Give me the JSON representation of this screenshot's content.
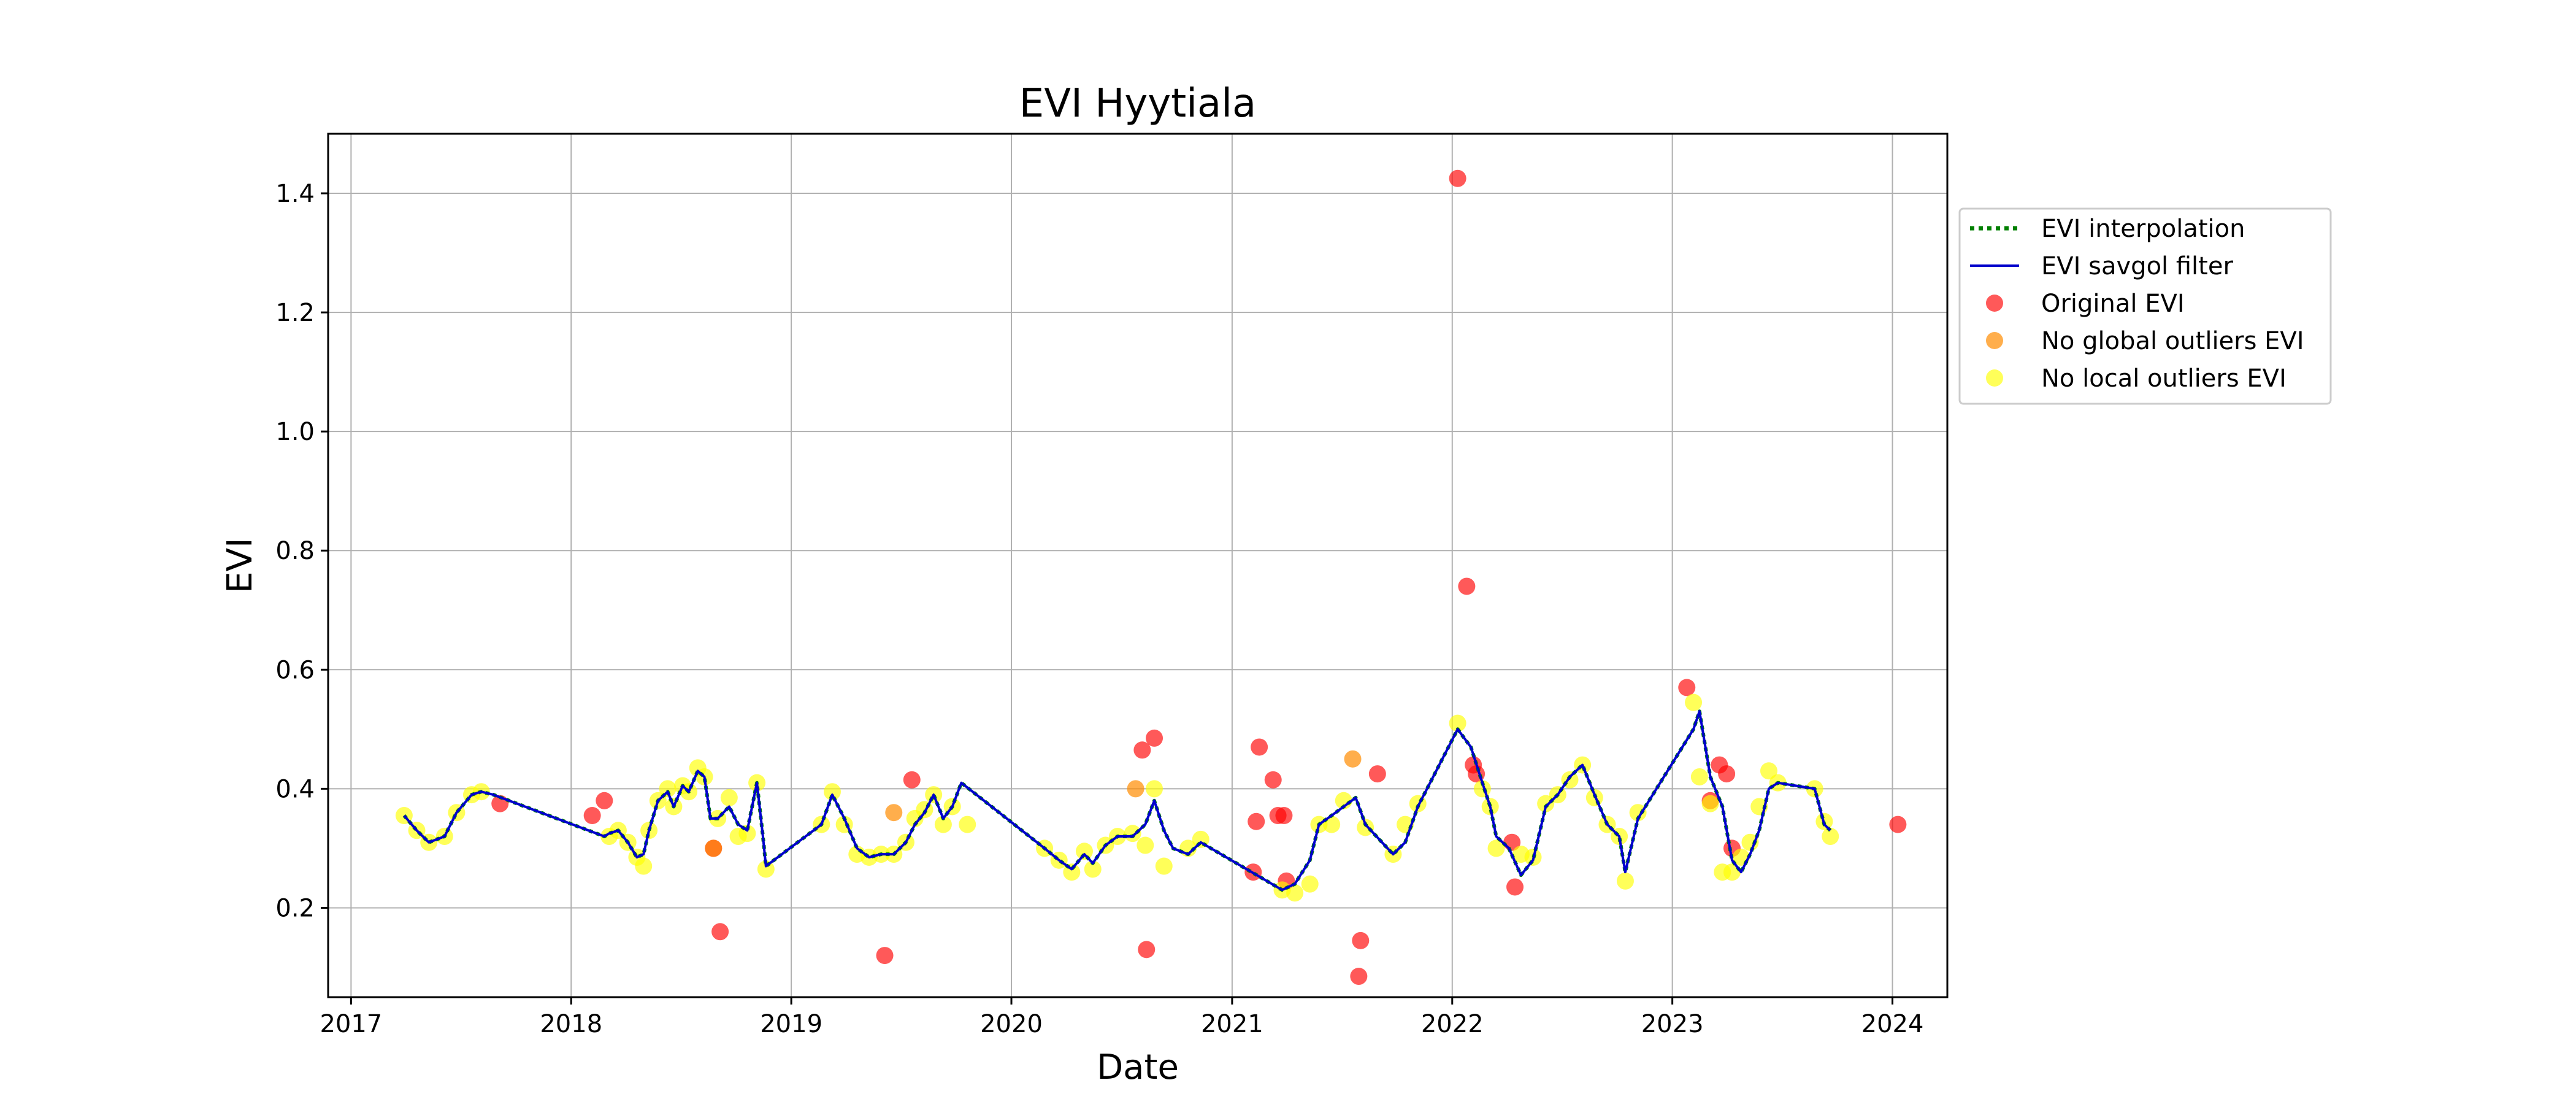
{
  "chart_data": {
    "type": "scatter",
    "title": "EVI Hyytiala",
    "xlabel": "Date",
    "ylabel": "EVI",
    "xlim": [
      "2016-11-24",
      "2024-04-01"
    ],
    "ylim": [
      0.05,
      1.5
    ],
    "x_ticks": [
      "2017",
      "2018",
      "2019",
      "2020",
      "2021",
      "2022",
      "2023",
      "2024"
    ],
    "y_ticks": [
      "0.2",
      "0.4",
      "0.6",
      "0.8",
      "1.0",
      "1.2",
      "1.4"
    ],
    "grid": true,
    "legend_position": "outside-right",
    "colors": {
      "interpolation": "#008000",
      "savgol": "#0000cc",
      "original": "#ff0000",
      "no_global": "#ff8c00",
      "no_local": "#ffff00"
    },
    "series": [
      {
        "name": "EVI interpolation",
        "style": "dotted-line",
        "x": [
          "2017-03-30",
          "2017-04-20",
          "2017-05-10",
          "2017-06-05",
          "2017-06-25",
          "2017-07-20",
          "2017-08-05",
          "2017-08-25",
          "2018-02-25",
          "2018-03-05",
          "2018-03-20",
          "2018-04-05",
          "2018-04-20",
          "2018-05-01",
          "2018-05-10",
          "2018-05-25",
          "2018-06-10",
          "2018-06-20",
          "2018-07-05",
          "2018-07-15",
          "2018-07-30",
          "2018-08-10",
          "2018-08-20",
          "2018-09-01",
          "2018-09-20",
          "2018-10-05",
          "2018-10-20",
          "2018-11-05",
          "2018-11-15",
          "2018-11-20",
          "2019-02-20",
          "2019-03-10",
          "2019-03-30",
          "2019-04-20",
          "2019-05-10",
          "2019-05-30",
          "2019-06-20",
          "2019-07-10",
          "2019-07-25",
          "2019-08-10",
          "2019-08-25",
          "2019-09-10",
          "2019-09-25",
          "2019-10-10",
          "2020-02-25",
          "2020-03-20",
          "2020-04-10",
          "2020-05-01",
          "2020-05-15",
          "2020-06-05",
          "2020-06-25",
          "2020-07-20",
          "2020-08-10",
          "2020-08-25",
          "2020-09-10",
          "2020-09-25",
          "2020-10-20",
          "2020-11-10",
          "2021-03-25",
          "2021-04-15",
          "2021-05-10",
          "2021-05-25",
          "2021-06-15",
          "2021-07-05",
          "2021-07-25",
          "2021-08-10",
          "2021-09-25",
          "2021-10-15",
          "2021-11-05",
          "2022-01-10",
          "2022-02-01",
          "2022-02-20",
          "2022-03-05",
          "2022-03-15",
          "2022-04-05",
          "2022-04-25",
          "2022-05-15",
          "2022-06-05",
          "2022-06-25",
          "2022-07-15",
          "2022-08-05",
          "2022-08-25",
          "2022-09-15",
          "2022-10-05",
          "2022-10-15",
          "2022-11-05",
          "2023-02-05",
          "2023-02-15",
          "2023-03-05",
          "2023-03-25",
          "2023-04-10",
          "2023-04-25",
          "2023-05-10",
          "2023-05-25",
          "2023-06-10",
          "2023-06-25",
          "2023-08-25",
          "2023-09-10",
          "2023-09-20"
        ],
        "y": [
          0.355,
          0.33,
          0.31,
          0.32,
          0.36,
          0.39,
          0.395,
          0.39,
          0.32,
          0.325,
          0.33,
          0.31,
          0.285,
          0.29,
          0.33,
          0.38,
          0.395,
          0.37,
          0.405,
          0.395,
          0.43,
          0.42,
          0.35,
          0.35,
          0.37,
          0.34,
          0.33,
          0.41,
          0.32,
          0.27,
          0.34,
          0.39,
          0.35,
          0.3,
          0.285,
          0.29,
          0.29,
          0.31,
          0.34,
          0.36,
          0.39,
          0.35,
          0.37,
          0.41,
          0.3,
          0.28,
          0.265,
          0.29,
          0.275,
          0.305,
          0.32,
          0.32,
          0.34,
          0.38,
          0.33,
          0.3,
          0.29,
          0.31,
          0.23,
          0.24,
          0.28,
          0.34,
          0.355,
          0.37,
          0.385,
          0.34,
          0.29,
          0.31,
          0.37,
          0.5,
          0.47,
          0.41,
          0.37,
          0.32,
          0.3,
          0.255,
          0.28,
          0.37,
          0.39,
          0.42,
          0.44,
          0.39,
          0.34,
          0.32,
          0.26,
          0.35,
          0.5,
          0.53,
          0.42,
          0.37,
          0.28,
          0.26,
          0.29,
          0.33,
          0.4,
          0.41,
          0.4,
          0.34,
          0.33
        ]
      },
      {
        "name": "EVI savgol filter",
        "style": "solid-line",
        "x": [
          "2017-03-30",
          "2017-04-20",
          "2017-05-10",
          "2017-06-05",
          "2017-06-25",
          "2017-07-20",
          "2017-08-05",
          "2017-08-25",
          "2018-02-25",
          "2018-03-05",
          "2018-03-20",
          "2018-04-05",
          "2018-04-20",
          "2018-05-01",
          "2018-05-10",
          "2018-05-25",
          "2018-06-10",
          "2018-06-20",
          "2018-07-05",
          "2018-07-15",
          "2018-07-30",
          "2018-08-10",
          "2018-08-20",
          "2018-09-01",
          "2018-09-20",
          "2018-10-05",
          "2018-10-20",
          "2018-11-05",
          "2018-11-15",
          "2018-11-20",
          "2019-02-20",
          "2019-03-10",
          "2019-03-30",
          "2019-04-20",
          "2019-05-10",
          "2019-05-30",
          "2019-06-20",
          "2019-07-10",
          "2019-07-25",
          "2019-08-10",
          "2019-08-25",
          "2019-09-10",
          "2019-09-25",
          "2019-10-10",
          "2020-02-25",
          "2020-03-20",
          "2020-04-10",
          "2020-05-01",
          "2020-05-15",
          "2020-06-05",
          "2020-06-25",
          "2020-07-20",
          "2020-08-10",
          "2020-08-25",
          "2020-09-10",
          "2020-09-25",
          "2020-10-20",
          "2020-11-10",
          "2021-03-25",
          "2021-04-15",
          "2021-05-10",
          "2021-05-25",
          "2021-06-15",
          "2021-07-05",
          "2021-07-25",
          "2021-08-10",
          "2021-09-25",
          "2021-10-15",
          "2021-11-05",
          "2022-01-10",
          "2022-02-01",
          "2022-02-20",
          "2022-03-05",
          "2022-03-15",
          "2022-04-05",
          "2022-04-25",
          "2022-05-15",
          "2022-06-05",
          "2022-06-25",
          "2022-07-15",
          "2022-08-05",
          "2022-08-25",
          "2022-09-15",
          "2022-10-05",
          "2022-10-15",
          "2022-11-05",
          "2023-02-05",
          "2023-02-15",
          "2023-03-05",
          "2023-03-25",
          "2023-04-10",
          "2023-04-25",
          "2023-05-10",
          "2023-05-25",
          "2023-06-10",
          "2023-06-25",
          "2023-08-25",
          "2023-09-10",
          "2023-09-20"
        ],
        "y": [
          0.355,
          0.33,
          0.31,
          0.32,
          0.36,
          0.39,
          0.395,
          0.39,
          0.32,
          0.325,
          0.33,
          0.31,
          0.285,
          0.29,
          0.33,
          0.38,
          0.395,
          0.37,
          0.405,
          0.395,
          0.43,
          0.42,
          0.35,
          0.35,
          0.37,
          0.34,
          0.33,
          0.41,
          0.32,
          0.27,
          0.34,
          0.39,
          0.35,
          0.3,
          0.285,
          0.29,
          0.29,
          0.31,
          0.34,
          0.36,
          0.39,
          0.35,
          0.37,
          0.41,
          0.3,
          0.28,
          0.265,
          0.29,
          0.275,
          0.305,
          0.32,
          0.32,
          0.34,
          0.38,
          0.33,
          0.3,
          0.29,
          0.31,
          0.23,
          0.24,
          0.28,
          0.34,
          0.355,
          0.37,
          0.385,
          0.34,
          0.29,
          0.31,
          0.37,
          0.5,
          0.47,
          0.41,
          0.37,
          0.32,
          0.3,
          0.255,
          0.28,
          0.37,
          0.39,
          0.42,
          0.44,
          0.39,
          0.34,
          0.32,
          0.26,
          0.35,
          0.5,
          0.53,
          0.42,
          0.37,
          0.28,
          0.26,
          0.29,
          0.33,
          0.4,
          0.41,
          0.4,
          0.34,
          0.33
        ]
      },
      {
        "name": "Original EVI",
        "style": "points",
        "x": [
          "2017-09-05",
          "2018-02-05",
          "2018-02-25",
          "2018-08-25",
          "2018-09-05",
          "2019-06-05",
          "2019-07-20",
          "2020-08-05",
          "2020-08-12",
          "2020-08-25",
          "2021-02-05",
          "2021-02-10",
          "2021-02-15",
          "2021-03-10",
          "2021-03-18",
          "2021-03-28",
          "2021-04-01",
          "2021-07-30",
          "2021-08-02",
          "2021-08-30",
          "2022-01-10",
          "2022-01-25",
          "2022-02-05",
          "2022-02-10",
          "2022-04-10",
          "2022-04-15",
          "2023-01-25",
          "2023-03-05",
          "2023-03-20",
          "2023-04-01",
          "2023-04-10",
          "2024-01-10"
        ],
        "y": [
          0.375,
          0.355,
          0.38,
          0.3,
          0.16,
          0.12,
          0.415,
          0.465,
          0.13,
          0.485,
          0.26,
          0.345,
          0.47,
          0.415,
          0.355,
          0.355,
          0.245,
          0.085,
          0.145,
          0.425,
          1.425,
          0.74,
          0.44,
          0.425,
          0.31,
          0.235,
          0.57,
          0.38,
          0.44,
          0.425,
          0.3,
          0.34
        ]
      },
      {
        "name": "No global outliers EVI",
        "style": "points",
        "x": [
          "2018-08-25",
          "2019-06-20",
          "2020-07-25",
          "2021-07-20"
        ],
        "y": [
          0.3,
          0.36,
          0.4,
          0.45
        ]
      },
      {
        "name": "No local outliers EVI",
        "style": "points",
        "x": [
          "2017-03-30",
          "2017-04-20",
          "2017-05-10",
          "2017-06-05",
          "2017-06-25",
          "2017-07-20",
          "2017-08-05",
          "2018-03-05",
          "2018-03-20",
          "2018-04-05",
          "2018-04-20",
          "2018-05-01",
          "2018-05-10",
          "2018-05-25",
          "2018-06-10",
          "2018-06-20",
          "2018-07-05",
          "2018-07-15",
          "2018-07-30",
          "2018-08-10",
          "2018-09-01",
          "2018-09-20",
          "2018-10-05",
          "2018-10-20",
          "2018-11-05",
          "2018-11-20",
          "2019-02-20",
          "2019-03-10",
          "2019-03-30",
          "2019-04-20",
          "2019-05-10",
          "2019-05-30",
          "2019-06-20",
          "2019-07-10",
          "2019-07-25",
          "2019-08-10",
          "2019-08-25",
          "2019-09-10",
          "2019-09-25",
          "2019-10-20",
          "2020-02-25",
          "2020-03-20",
          "2020-04-10",
          "2020-05-01",
          "2020-05-15",
          "2020-06-05",
          "2020-06-25",
          "2020-07-20",
          "2020-08-10",
          "2020-08-25",
          "2020-09-10",
          "2020-10-20",
          "2020-11-10",
          "2021-03-25",
          "2021-04-15",
          "2021-05-10",
          "2021-05-25",
          "2021-06-15",
          "2021-07-05",
          "2021-08-10",
          "2021-09-25",
          "2021-10-15",
          "2021-11-05",
          "2022-01-10",
          "2022-02-20",
          "2022-03-05",
          "2022-03-15",
          "2022-04-25",
          "2022-05-15",
          "2022-06-05",
          "2022-06-25",
          "2022-07-15",
          "2022-08-05",
          "2022-08-25",
          "2022-09-15",
          "2022-10-05",
          "2022-10-15",
          "2022-11-05",
          "2023-02-05",
          "2023-02-15",
          "2023-03-05",
          "2023-03-25",
          "2023-04-10",
          "2023-04-25",
          "2023-05-10",
          "2023-05-25",
          "2023-06-10",
          "2023-06-25",
          "2023-08-25",
          "2023-09-10",
          "2023-09-20"
        ],
        "y": [
          0.355,
          0.33,
          0.31,
          0.32,
          0.36,
          0.39,
          0.395,
          0.32,
          0.33,
          0.31,
          0.285,
          0.27,
          0.33,
          0.38,
          0.4,
          0.37,
          0.405,
          0.395,
          0.435,
          0.42,
          0.35,
          0.385,
          0.32,
          0.325,
          0.41,
          0.265,
          0.34,
          0.395,
          0.34,
          0.29,
          0.285,
          0.29,
          0.29,
          0.31,
          0.35,
          0.365,
          0.39,
          0.34,
          0.37,
          0.34,
          0.3,
          0.28,
          0.26,
          0.295,
          0.265,
          0.305,
          0.32,
          0.325,
          0.305,
          0.4,
          0.27,
          0.3,
          0.315,
          0.23,
          0.225,
          0.24,
          0.34,
          0.34,
          0.38,
          0.335,
          0.29,
          0.34,
          0.375,
          0.51,
          0.4,
          0.37,
          0.3,
          0.29,
          0.285,
          0.375,
          0.39,
          0.415,
          0.44,
          0.385,
          0.34,
          0.32,
          0.245,
          0.36,
          0.545,
          0.42,
          0.375,
          0.26,
          0.26,
          0.285,
          0.31,
          0.37,
          0.43,
          0.41,
          0.4,
          0.345,
          0.32
        ]
      }
    ]
  }
}
